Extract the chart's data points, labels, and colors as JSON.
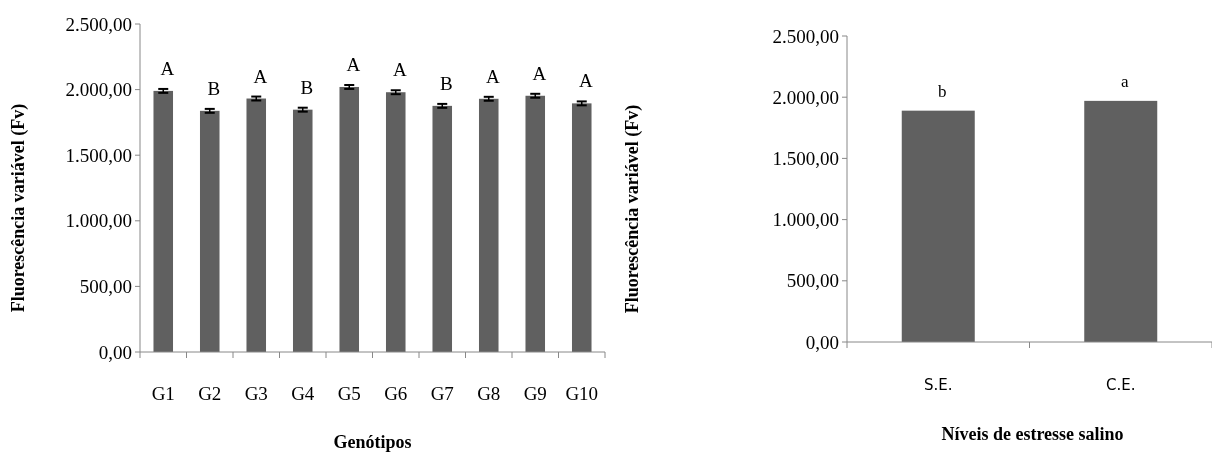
{
  "chart_data": [
    {
      "type": "bar",
      "xlabel": "Genótipos",
      "ylabel": "Fluorescência variável (Fv)",
      "categories": [
        "G1",
        "G2",
        "G3",
        "G4",
        "G5",
        "G6",
        "G7",
        "G8",
        "G9",
        "G10"
      ],
      "values": [
        1990,
        1838,
        1932,
        1847,
        2020,
        1980,
        1876,
        1930,
        1953,
        1895
      ],
      "errors": [
        15,
        15,
        15,
        15,
        15,
        15,
        15,
        15,
        15,
        15
      ],
      "color": "#606060",
      "ylim": [
        0,
        2500
      ],
      "yticks": [
        {
          "value": 0,
          "label": "0,00"
        },
        {
          "value": 500,
          "label": "500,00"
        },
        {
          "value": 1000,
          "label": "1.000,00"
        },
        {
          "value": 1500,
          "label": "1.500,00"
        },
        {
          "value": 2000,
          "label": "2.000,00"
        },
        {
          "value": 2500,
          "label": "2.500,00"
        }
      ],
      "grid": false,
      "annotations": [
        "A",
        "B",
        "A",
        "B",
        "A",
        "A",
        "B",
        "A",
        "A",
        "A"
      ]
    },
    {
      "type": "bar",
      "xlabel": "Níveis de estresse salino",
      "ylabel": "Fluorescência variável (Fv)",
      "categories": [
        "S.E.",
        "C.E."
      ],
      "values": [
        1890,
        1970
      ],
      "color": "#606060",
      "ylim": [
        0,
        2500
      ],
      "yticks": [
        {
          "value": 0,
          "label": "0,00"
        },
        {
          "value": 500,
          "label": "500,00"
        },
        {
          "value": 1000,
          "label": "1.000,00"
        },
        {
          "value": 1500,
          "label": "1.500,00"
        },
        {
          "value": 2000,
          "label": "2.000,00"
        },
        {
          "value": 2500,
          "label": "2.500,00"
        }
      ],
      "grid": false,
      "annotations": [
        "b",
        "a"
      ]
    }
  ]
}
